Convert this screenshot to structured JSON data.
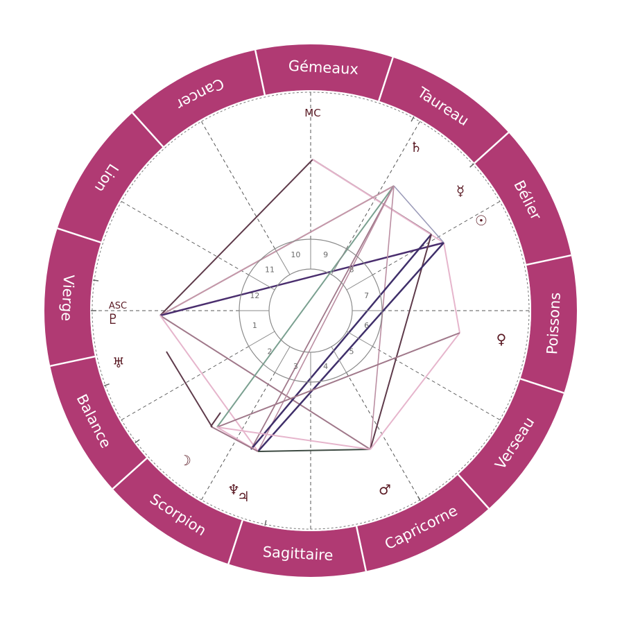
{
  "colors": {
    "ring": "#b03a73",
    "ring_divider": "#ffffff",
    "glyph": "#5a1a24",
    "house_line": "#555555",
    "house_circle": "#8a8a8a"
  },
  "zodiac": [
    {
      "label": "Gémeaux"
    },
    {
      "label": "Taureau"
    },
    {
      "label": "Bélier"
    },
    {
      "label": "Poissons"
    },
    {
      "label": "Verseau"
    },
    {
      "label": "Capricorne"
    },
    {
      "label": "Sagittaire"
    },
    {
      "label": "Scorpion"
    },
    {
      "label": "Balance"
    },
    {
      "label": "Vierge"
    },
    {
      "label": "Lion"
    },
    {
      "label": "Cancer"
    }
  ],
  "axes": {
    "mc_label": "MC",
    "asc_label": "ASC"
  },
  "houses": [
    "1",
    "2",
    "3",
    "4",
    "5",
    "6",
    "7",
    "8",
    "9",
    "10",
    "11",
    "12"
  ],
  "planets": [
    {
      "name": "saturn",
      "glyph": "♄",
      "icon": "saturn-icon"
    },
    {
      "name": "mercury",
      "glyph": "☿",
      "icon": "mercury-icon"
    },
    {
      "name": "sun",
      "glyph": "☉",
      "icon": "sun-icon"
    },
    {
      "name": "venus",
      "glyph": "♀",
      "icon": "venus-icon"
    },
    {
      "name": "mars",
      "glyph": "♂",
      "icon": "mars-icon"
    },
    {
      "name": "jupiter",
      "glyph": "♃",
      "icon": "jupiter-icon"
    },
    {
      "name": "neptune",
      "glyph": "♆",
      "icon": "neptune-icon"
    },
    {
      "name": "moon",
      "glyph": "☽",
      "icon": "moon-icon"
    },
    {
      "name": "uranus",
      "glyph": "♅",
      "icon": "uranus-icon"
    },
    {
      "name": "pluto",
      "glyph": "♇",
      "icon": "pluto-icon"
    }
  ]
}
